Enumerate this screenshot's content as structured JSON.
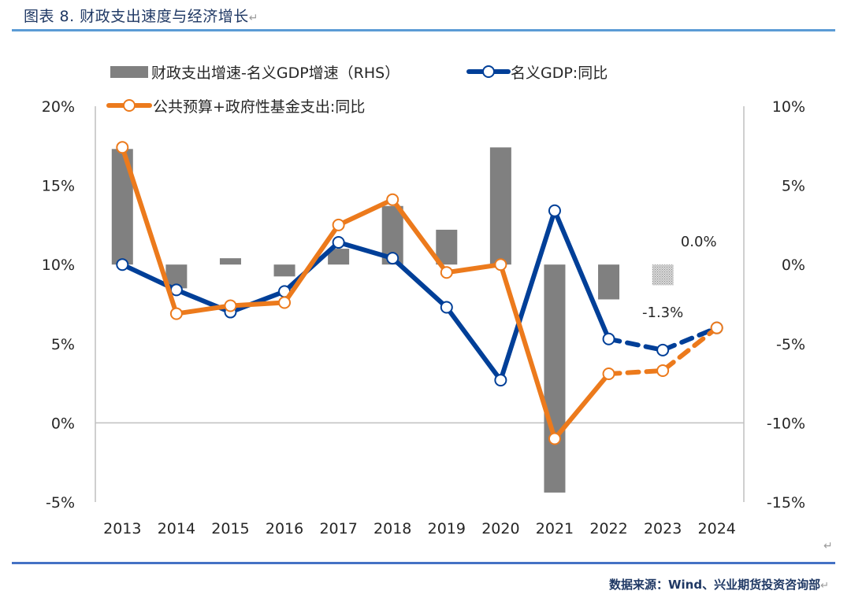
{
  "header": {
    "title": "图表 8. 财政支出速度与经济增长",
    "return_mark": "↵"
  },
  "footer": {
    "source": "数据来源：Wind、兴业期货投资咨询部",
    "return_mark": "↵"
  },
  "colors": {
    "bar": "#808080",
    "gdp": "#003f98",
    "spend": "#ec7a1c",
    "axis": "#bfbfbf",
    "rule_top": "#5b9bd5",
    "rule_bottom": "#4472c4",
    "title": "#1f3864"
  },
  "chart_data": {
    "type": "bar+line",
    "title": "财政支出速度与经济增长",
    "categories": [
      "2013",
      "2014",
      "2015",
      "2016",
      "2017",
      "2018",
      "2019",
      "2020",
      "2021",
      "2022",
      "2023",
      "2024"
    ],
    "left_axis": {
      "range": [
        -5,
        20
      ],
      "ticks": [
        -5,
        0,
        5,
        10,
        15,
        20
      ],
      "tick_labels": [
        "-5%",
        "0%",
        "5%",
        "10%",
        "15%",
        "20%"
      ]
    },
    "right_axis": {
      "range": [
        -15,
        10
      ],
      "ticks": [
        -15,
        -10,
        -5,
        0,
        5,
        10
      ],
      "tick_labels": [
        "-15%",
        "-10%",
        "-5%",
        "0%",
        "5%",
        "10%"
      ]
    },
    "series": [
      {
        "name": "财政支出增速-名义GDP增速（RHS）",
        "type": "bar",
        "axis": "right",
        "values": [
          7.3,
          -1.5,
          0.4,
          -0.75,
          1.0,
          3.7,
          2.2,
          7.4,
          -14.4,
          -2.2,
          -1.3,
          0.0
        ],
        "estimated_from": 10
      },
      {
        "name": "名义GDP:同比",
        "type": "line",
        "axis": "left",
        "values": [
          10.0,
          8.4,
          7.0,
          8.3,
          11.4,
          10.4,
          7.3,
          2.7,
          13.4,
          5.3,
          4.6,
          6.0
        ],
        "dashed_from": 9
      },
      {
        "name": "公共预算+政府性基金支出:同比",
        "type": "line",
        "axis": "left",
        "values": [
          17.4,
          6.9,
          7.4,
          7.6,
          12.5,
          14.1,
          9.5,
          10.0,
          -1.0,
          3.1,
          3.3,
          6.0
        ],
        "dashed_from": 9
      }
    ],
    "annotations": [
      {
        "text": "0.0%",
        "category": "2024"
      },
      {
        "text": "-1.3%",
        "category": "2023"
      }
    ],
    "legend": [
      {
        "label": "财政支出增速-名义GDP增速（RHS）",
        "marker": "bar"
      },
      {
        "label": "名义GDP:同比",
        "marker": "line-circle-blue"
      },
      {
        "label": "公共预算+政府性基金支出:同比",
        "marker": "line-circle-orange"
      }
    ],
    "legend_position": "top-left",
    "grid": false
  }
}
